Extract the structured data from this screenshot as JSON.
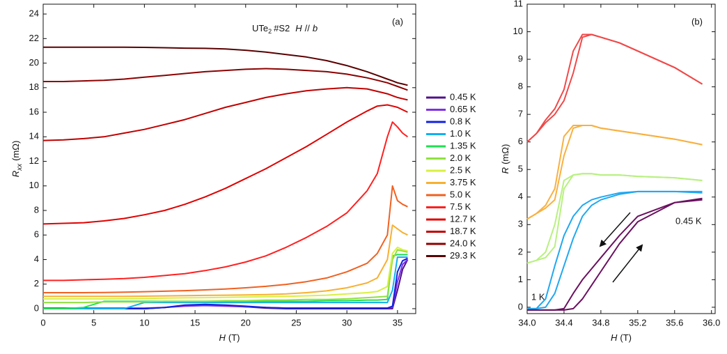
{
  "chart_data": [
    {
      "type": "line",
      "panel_label": "(a)",
      "annotation": {
        "compound": "UTe",
        "subscript": "2",
        "sample": "#S2",
        "field": "H",
        "relation": "//",
        "axis": "b"
      },
      "xlabel": {
        "symbol": "H",
        "unit": "(T)"
      },
      "ylabel": {
        "symbol": "R",
        "subscript": "xx",
        "unit": "(mΩ)"
      },
      "xlim": [
        0,
        36.8
      ],
      "ylim": [
        -0.4,
        24.8
      ],
      "xticks": [
        0,
        5,
        10,
        15,
        20,
        25,
        30,
        35
      ],
      "yticks": [
        0,
        2,
        4,
        6,
        8,
        10,
        12,
        14,
        16,
        18,
        20,
        22,
        24
      ],
      "x": [
        0,
        2,
        4,
        6,
        8,
        10,
        12,
        14,
        16,
        18,
        20,
        22,
        24,
        26,
        28,
        30,
        32,
        33,
        34,
        34.5,
        35,
        35.5,
        36
      ],
      "series": [
        {
          "name": "0.45 K",
          "color": "#50108a",
          "values": [
            0,
            0,
            0,
            0,
            0,
            0,
            0.1,
            0.25,
            0.3,
            0.25,
            0.15,
            0.05,
            0,
            0,
            0,
            0,
            0,
            0,
            0,
            0,
            1.5,
            3.2,
            4.0
          ]
        },
        {
          "name": "0.65 K",
          "color": "#8030e0",
          "values": [
            0.05,
            0.05,
            0.05,
            0.05,
            0.05,
            0.05,
            0.1,
            0.2,
            0.25,
            0.2,
            0.15,
            0.1,
            0.05,
            0.05,
            0.05,
            0.05,
            0.05,
            0.05,
            0.05,
            0.1,
            2.2,
            3.6,
            4.0
          ]
        },
        {
          "name": "0.8 K",
          "color": "#1020e0",
          "values": [
            0,
            0,
            0,
            0,
            0,
            0,
            0.1,
            0.3,
            0.35,
            0.3,
            0.2,
            0.1,
            0.05,
            0.05,
            0.05,
            0.05,
            0.05,
            0.05,
            0.05,
            0.2,
            3.0,
            3.9,
            4.1
          ]
        },
        {
          "name": "1.0 K",
          "color": "#10b0f0",
          "values": [
            0,
            0,
            0,
            0,
            0,
            0.5,
            0.5,
            0.5,
            0.5,
            0.5,
            0.5,
            0.5,
            0.5,
            0.5,
            0.5,
            0.5,
            0.5,
            0.5,
            0.5,
            1.5,
            4.2,
            4.2,
            4.2
          ]
        },
        {
          "name": "1.35 K",
          "color": "#20e050",
          "values": [
            0,
            0,
            0.1,
            0.6,
            0.6,
            0.6,
            0.6,
            0.6,
            0.6,
            0.6,
            0.6,
            0.6,
            0.6,
            0.6,
            0.65,
            0.65,
            0.7,
            0.7,
            0.75,
            4.3,
            4.4,
            4.4,
            4.4
          ]
        },
        {
          "name": "2.0 K",
          "color": "#90e040",
          "values": [
            0.5,
            0.5,
            0.5,
            0.55,
            0.55,
            0.55,
            0.6,
            0.6,
            0.6,
            0.65,
            0.65,
            0.7,
            0.7,
            0.75,
            0.75,
            0.8,
            0.9,
            0.95,
            1.0,
            4.0,
            4.8,
            4.7,
            4.6
          ]
        },
        {
          "name": "2.5 K",
          "color": "#d8f040",
          "values": [
            0.8,
            0.8,
            0.8,
            0.8,
            0.82,
            0.84,
            0.86,
            0.88,
            0.9,
            0.92,
            0.95,
            0.98,
            1.0,
            1.05,
            1.1,
            1.2,
            1.3,
            1.4,
            1.8,
            4.5,
            5.0,
            4.8,
            4.7
          ]
        },
        {
          "name": "3.75 K",
          "color": "#f7b030",
          "values": [
            1.0,
            1.0,
            1.0,
            1.0,
            1.0,
            1.02,
            1.04,
            1.06,
            1.08,
            1.1,
            1.12,
            1.15,
            1.2,
            1.3,
            1.45,
            1.7,
            2.1,
            2.5,
            4.0,
            6.8,
            6.5,
            6.2,
            6.0
          ]
        },
        {
          "name": "5.0 K",
          "color": "#f06020",
          "values": [
            1.3,
            1.3,
            1.3,
            1.32,
            1.35,
            1.38,
            1.42,
            1.47,
            1.53,
            1.6,
            1.7,
            1.82,
            1.98,
            2.2,
            2.5,
            3.0,
            3.7,
            4.5,
            6.0,
            10.0,
            8.8,
            8.5,
            8.3
          ]
        },
        {
          "name": "7.5 K",
          "color": "#ff2020",
          "values": [
            2.3,
            2.3,
            2.35,
            2.4,
            2.45,
            2.55,
            2.7,
            2.85,
            3.1,
            3.4,
            3.8,
            4.3,
            5.0,
            5.8,
            6.7,
            7.8,
            9.6,
            11.0,
            14.0,
            15.2,
            14.8,
            14.3,
            14.0
          ]
        },
        {
          "name": "12.7 K",
          "color": "#e00000",
          "values": [
            6.9,
            6.95,
            7.0,
            7.15,
            7.35,
            7.65,
            8.0,
            8.5,
            9.1,
            9.8,
            10.6,
            11.4,
            12.3,
            13.2,
            14.2,
            15.2,
            16.1,
            16.5,
            16.6,
            16.5,
            16.4,
            16.2,
            16.0
          ]
        },
        {
          "name": "18.7 K",
          "color": "#c00000",
          "values": [
            13.7,
            13.75,
            13.85,
            14.0,
            14.3,
            14.6,
            15.0,
            15.4,
            15.9,
            16.4,
            16.8,
            17.2,
            17.5,
            17.75,
            17.9,
            18.0,
            17.9,
            17.7,
            17.5,
            17.35,
            17.2,
            17.1,
            17.0
          ]
        },
        {
          "name": "24.0 K",
          "color": "#8b0000",
          "values": [
            18.5,
            18.5,
            18.55,
            18.6,
            18.7,
            18.85,
            19.0,
            19.15,
            19.3,
            19.4,
            19.5,
            19.55,
            19.5,
            19.4,
            19.3,
            19.1,
            18.8,
            18.6,
            18.4,
            18.25,
            18.1,
            17.95,
            17.8
          ]
        },
        {
          "name": "29.3 K",
          "color": "#5a0000",
          "values": [
            21.3,
            21.3,
            21.3,
            21.3,
            21.3,
            21.28,
            21.25,
            21.22,
            21.2,
            21.15,
            21.05,
            20.9,
            20.7,
            20.5,
            20.2,
            19.8,
            19.3,
            19.0,
            18.7,
            18.55,
            18.4,
            18.3,
            18.2
          ]
        }
      ]
    },
    {
      "type": "line",
      "panel_label": "(b)",
      "xlabel": {
        "symbol": "H",
        "unit": "(T)"
      },
      "ylabel": {
        "symbol": "R",
        "unit": "(mΩ)"
      },
      "xlim": [
        34.0,
        36.04
      ],
      "ylim": [
        -0.23,
        11
      ],
      "xticks": [
        {
          "value": 34.0,
          "label": "34.0"
        },
        {
          "value": 34.4,
          "label": "34.4"
        },
        {
          "value": 34.8,
          "label": "34.8"
        },
        {
          "value": 35.2,
          "label": "35.2"
        },
        {
          "value": 35.6,
          "label": "35.6"
        },
        {
          "value": 36.0,
          "label": "36.0"
        }
      ],
      "yticks": [
        0,
        1,
        2,
        3,
        4,
        5,
        6,
        7,
        8,
        9,
        10,
        11
      ],
      "annotations": [
        "1 K",
        "0.45 K"
      ],
      "x": [
        34.0,
        34.1,
        34.2,
        34.3,
        34.4,
        34.5,
        34.6,
        34.7,
        34.8,
        35.0,
        35.2,
        35.6,
        35.9
      ],
      "series": [
        {
          "color": "#f04848",
          "values": [
            6.0,
            6.3,
            6.7,
            7.0,
            7.5,
            8.5,
            9.8,
            9.9,
            9.8,
            9.6,
            9.3,
            8.7,
            8.1
          ]
        },
        {
          "color": "#f04848",
          "values": [
            6.0,
            6.3,
            6.8,
            7.2,
            7.9,
            9.3,
            9.9,
            9.9,
            9.8,
            9.6,
            9.3,
            8.7,
            8.1
          ]
        },
        {
          "color": "#f8b040",
          "values": [
            3.2,
            3.4,
            3.6,
            3.9,
            5.5,
            6.5,
            6.6,
            6.6,
            6.5,
            6.4,
            6.3,
            6.1,
            5.9
          ]
        },
        {
          "color": "#f8b040",
          "values": [
            3.2,
            3.4,
            3.7,
            4.3,
            6.2,
            6.6,
            6.6,
            6.6,
            6.5,
            6.4,
            6.3,
            6.1,
            5.9
          ]
        },
        {
          "color": "#b8f080",
          "values": [
            1.6,
            1.7,
            1.8,
            2.2,
            4.3,
            4.8,
            4.85,
            4.85,
            4.8,
            4.8,
            4.75,
            4.7,
            4.6
          ]
        },
        {
          "color": "#b8f080",
          "values": [
            1.6,
            1.7,
            2.0,
            3.0,
            4.6,
            4.8,
            4.85,
            4.85,
            4.8,
            4.8,
            4.75,
            4.7,
            4.6
          ]
        },
        {
          "color": "#20a8f0",
          "values": [
            -0.05,
            -0.05,
            0,
            0.5,
            1.5,
            2.5,
            3.3,
            3.7,
            3.9,
            4.1,
            4.2,
            4.2,
            4.2
          ]
        },
        {
          "color": "#20a8f0",
          "values": [
            -0.05,
            -0.05,
            0.3,
            1.5,
            2.6,
            3.3,
            3.7,
            3.9,
            4.0,
            4.15,
            4.2,
            4.2,
            4.15
          ]
        },
        {
          "color": "#6a1060",
          "values": [
            -0.1,
            -0.1,
            -0.1,
            -0.1,
            -0.1,
            -0.05,
            0.3,
            0.8,
            1.3,
            2.3,
            3.1,
            3.8,
            3.9
          ]
        },
        {
          "color": "#6a1060",
          "values": [
            -0.1,
            -0.1,
            -0.1,
            -0.1,
            -0.05,
            0.5,
            1.0,
            1.4,
            1.8,
            2.6,
            3.3,
            3.8,
            3.95
          ]
        }
      ]
    }
  ]
}
